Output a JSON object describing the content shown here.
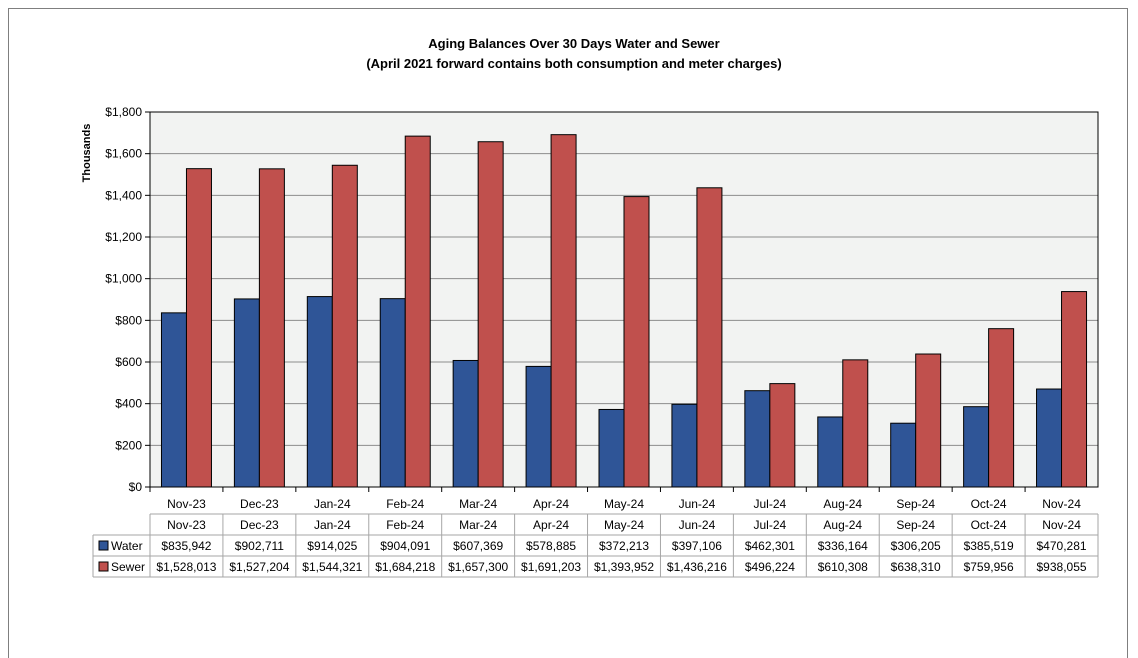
{
  "chart_data": {
    "type": "bar",
    "title": "Aging Balances Over 30 Days Water and Sewer",
    "subtitle": "(April 2021 forward contains both consumption and meter charges)",
    "ylabel": "Thousands",
    "xlabel": "",
    "ylim": [
      0,
      1800
    ],
    "y_ticks": [
      0,
      200,
      400,
      600,
      800,
      1000,
      1200,
      1400,
      1600,
      1800
    ],
    "y_tick_labels": [
      "$0",
      "$200",
      "$400",
      "$600",
      "$800",
      "$1,000",
      "$1,200",
      "$1,400",
      "$1,600",
      "$1,800"
    ],
    "grid": true,
    "legend": "data-table",
    "categories": [
      "Nov-23",
      "Dec-23",
      "Jan-24",
      "Feb-24",
      "Mar-24",
      "Apr-24",
      "May-24",
      "Jun-24",
      "Jul-24",
      "Aug-24",
      "Sep-24",
      "Oct-24",
      "Nov-24"
    ],
    "series": [
      {
        "name": "Water",
        "color": "#2f5597",
        "values": [
          835.942,
          902.711,
          914.025,
          904.091,
          607.369,
          578.885,
          372.213,
          397.106,
          462.301,
          336.164,
          306.205,
          385.519,
          470.281
        ],
        "table_labels": [
          "$835,942",
          "$902,711",
          "$914,025",
          "$904,091",
          "$607,369",
          "$578,885",
          "$372,213",
          "$397,106",
          "$462,301",
          "$336,164",
          "$306,205",
          "$385,519",
          "$470,281"
        ]
      },
      {
        "name": "Sewer",
        "color": "#c0504d",
        "values": [
          1528.013,
          1527.204,
          1544.321,
          1684.218,
          1657.3,
          1691.203,
          1393.952,
          1436.216,
          496.224,
          610.308,
          638.31,
          759.956,
          938.055
        ],
        "table_labels": [
          "$1,528,013",
          "$1,527,204",
          "$1,544,321",
          "$1,684,218",
          "$1,657,300",
          "$1,691,203",
          "$1,393,952",
          "$1,436,216",
          "$496,224",
          "$610,308",
          "$638,310",
          "$759,956",
          "$938,055"
        ]
      }
    ]
  }
}
